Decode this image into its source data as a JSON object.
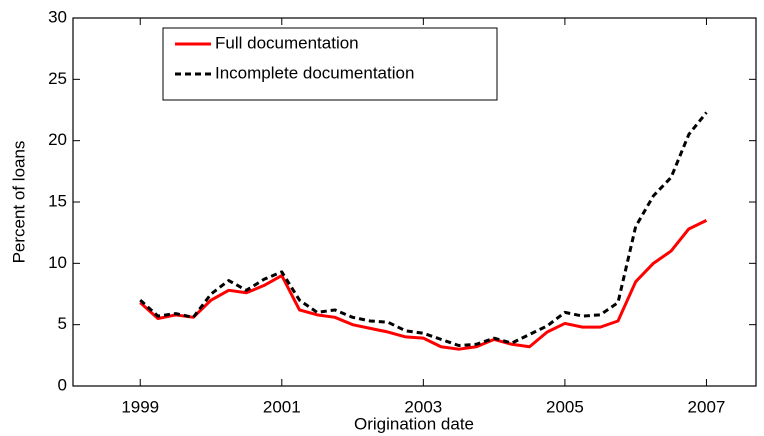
{
  "chart_data": {
    "type": "line",
    "x_label": "Origination date",
    "y_label": "Percent of loans",
    "x": [
      1999,
      1999.25,
      1999.5,
      1999.75,
      2000,
      2000.25,
      2000.5,
      2000.75,
      2001,
      2001.25,
      2001.5,
      2001.75,
      2002,
      2002.25,
      2002.5,
      2002.75,
      2003,
      2003.25,
      2003.5,
      2003.75,
      2004,
      2004.25,
      2004.5,
      2004.75,
      2005,
      2005.25,
      2005.5,
      2005.75,
      2006,
      2006.25,
      2006.5,
      2006.75,
      2007
    ],
    "series": [
      {
        "name": "Full documentation",
        "color": "#ff0000",
        "line_style": "solid",
        "values": [
          6.8,
          5.5,
          5.8,
          5.6,
          7.0,
          7.8,
          7.6,
          8.2,
          9.0,
          6.2,
          5.8,
          5.6,
          5.0,
          4.7,
          4.4,
          4.0,
          3.9,
          3.2,
          3.0,
          3.2,
          3.8,
          3.4,
          3.2,
          4.4,
          5.1,
          4.8,
          4.8,
          5.3,
          8.5,
          10.0,
          11.0,
          12.8,
          13.5
        ]
      },
      {
        "name": "Incomplete documentation",
        "color": "#000000",
        "line_style": "dashed",
        "values": [
          7.0,
          5.7,
          5.9,
          5.6,
          7.5,
          8.6,
          7.8,
          8.7,
          9.3,
          7.0,
          6.0,
          6.2,
          5.6,
          5.3,
          5.2,
          4.5,
          4.3,
          3.8,
          3.3,
          3.4,
          3.9,
          3.5,
          4.2,
          4.9,
          6.0,
          5.7,
          5.8,
          6.8,
          13.0,
          15.5,
          17.0,
          20.5,
          22.3
        ]
      }
    ],
    "xlim": [
      1998.05,
      2007.7
    ],
    "xticks": [
      1999,
      2001,
      2003,
      2005,
      2007
    ],
    "ylim": [
      0,
      30
    ],
    "yticks": [
      0,
      5,
      10,
      15,
      20,
      25,
      30
    ],
    "grid": false,
    "legend": "upper left"
  }
}
